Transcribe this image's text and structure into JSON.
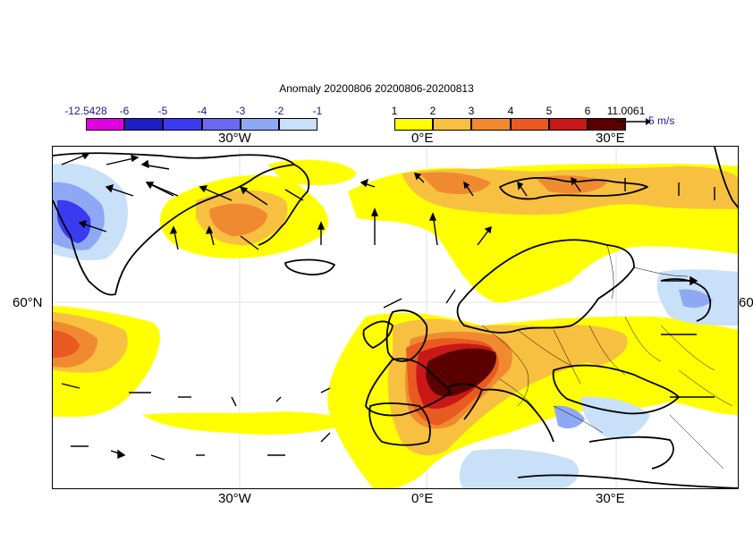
{
  "title": "Anomaly 20200806 20200806-20200813",
  "colorbar_negative": {
    "labels": [
      "-12.5428",
      "-6",
      "-5",
      "-4",
      "-3",
      "-2",
      "-1"
    ],
    "colors": [
      "#e000e0",
      "#1f1fc8",
      "#3a3af0",
      "#5a5af0",
      "#8a8af0",
      "#a8c4f0",
      "#c8e0f8"
    ]
  },
  "colorbar_positive": {
    "labels": [
      "1",
      "2",
      "3",
      "4",
      "5",
      "6",
      "11.0061"
    ],
    "colors": [
      "#ffff00",
      "#f8c040",
      "#f09030",
      "#e86020",
      "#d83010",
      "#b01010",
      "#5a0000"
    ]
  },
  "axes": {
    "lon_labels": [
      "30°W",
      "0°E",
      "30°E"
    ],
    "lat_labels": [
      "60°N"
    ]
  },
  "reference_vector": "5 m/s"
}
